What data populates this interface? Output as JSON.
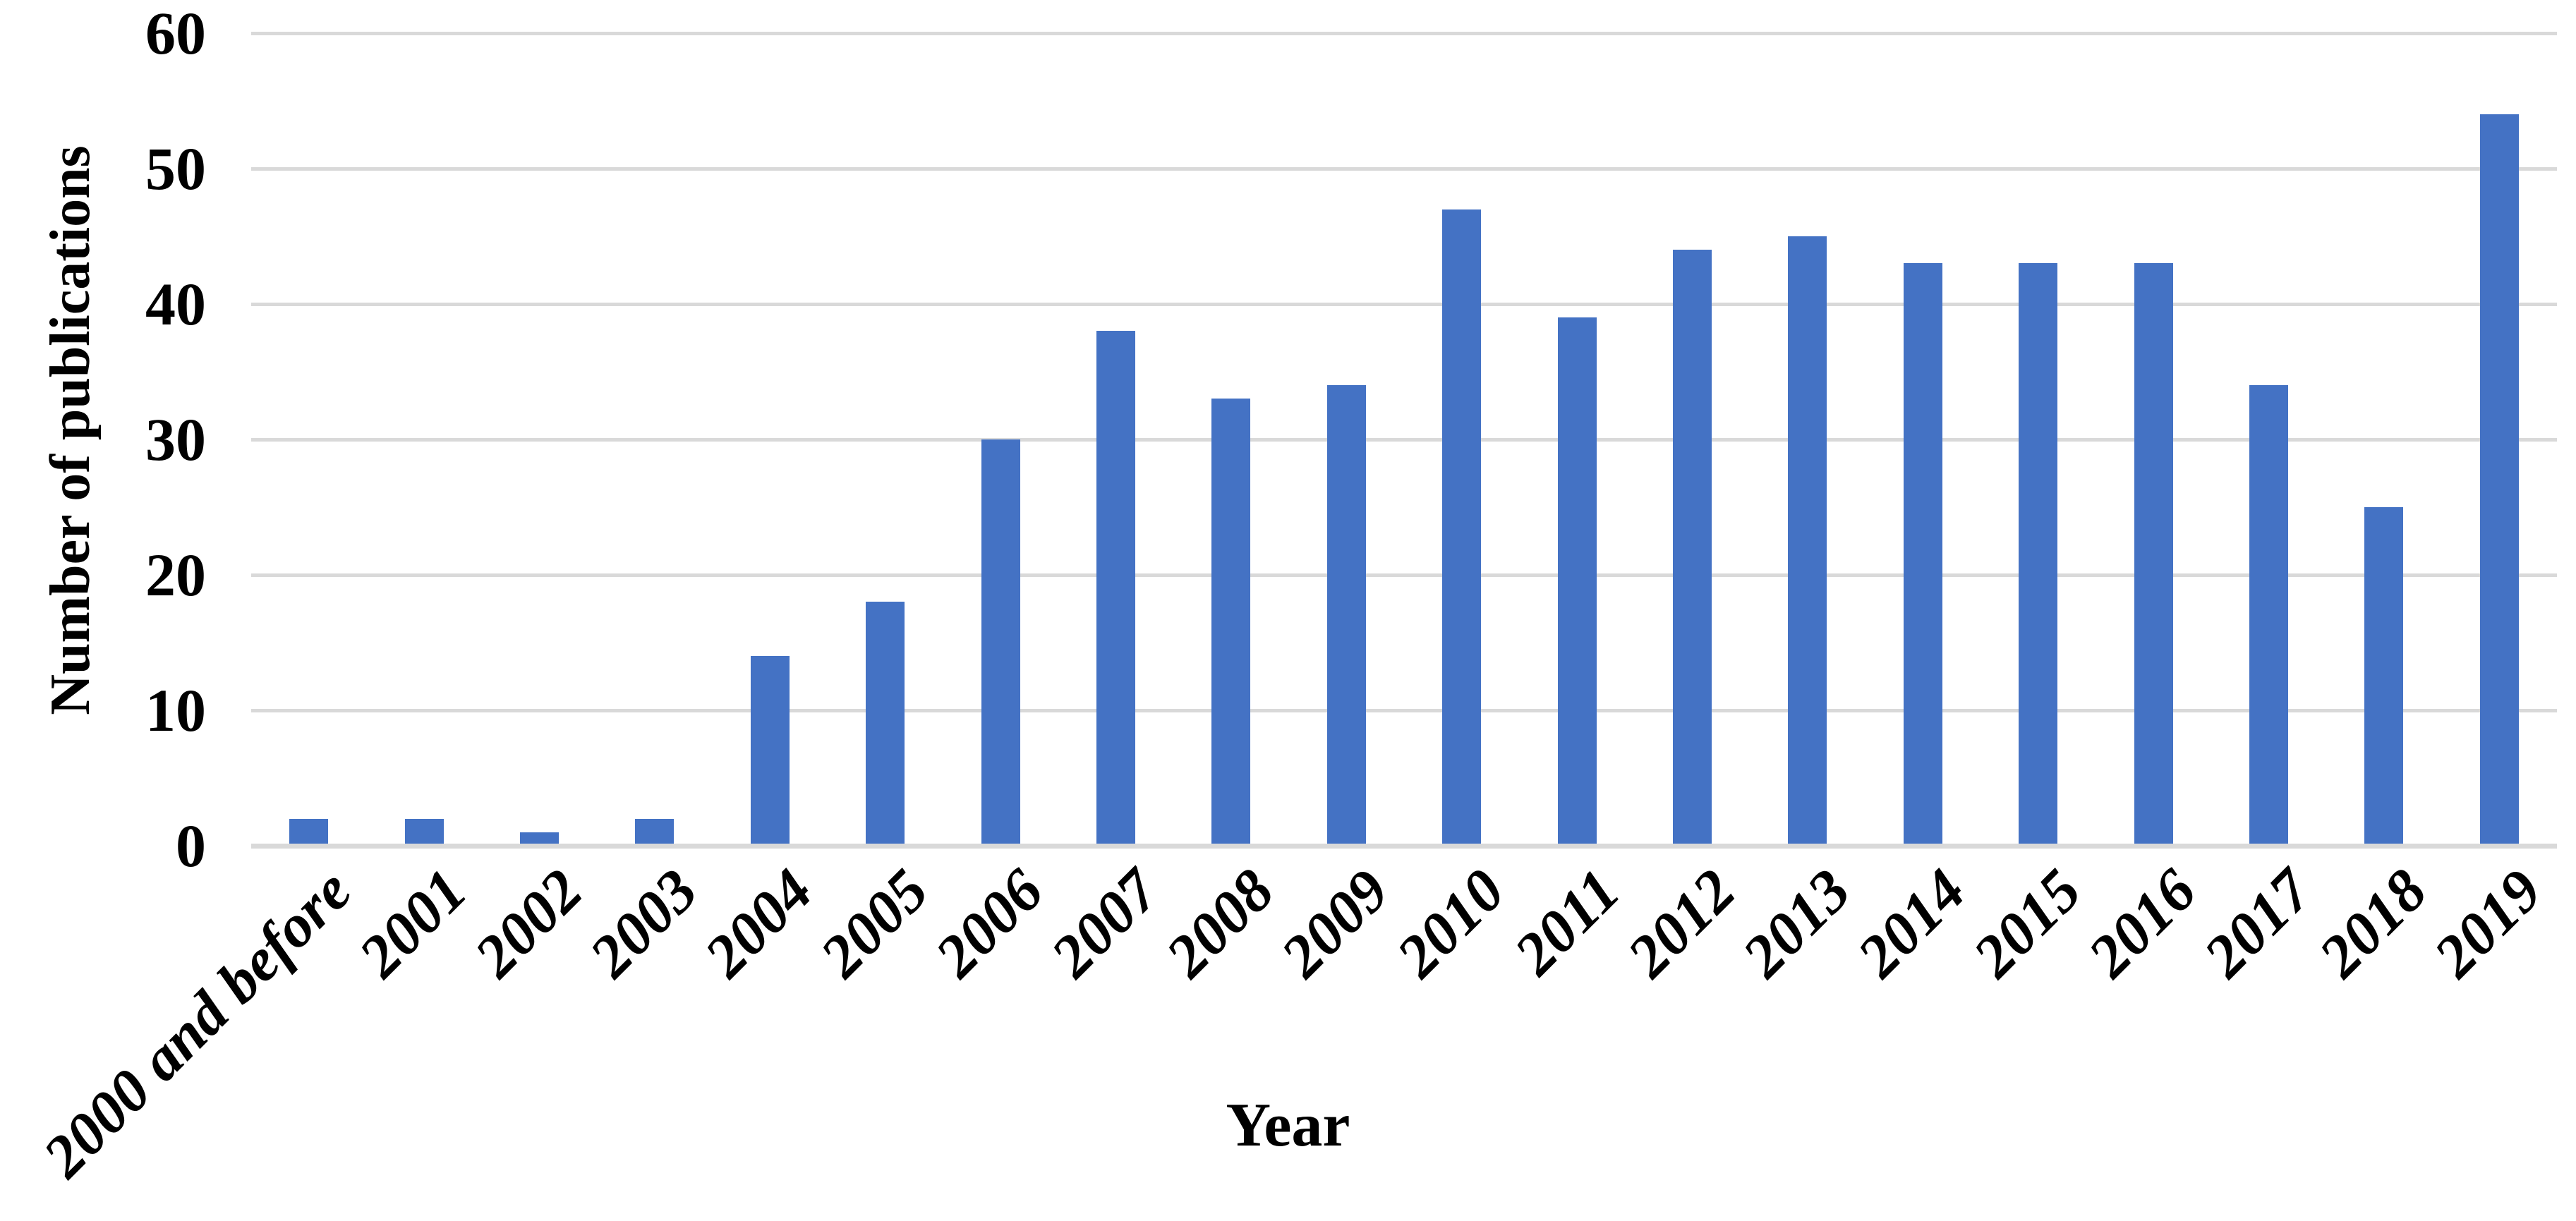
{
  "chart_data": {
    "type": "bar",
    "title": "",
    "xlabel": "Year",
    "ylabel": "Number of publications",
    "categories": [
      "2000 and before",
      "2001",
      "2002",
      "2003",
      "2004",
      "2005",
      "2006",
      "2007",
      "2008",
      "2009",
      "2010",
      "2011",
      "2012",
      "2013",
      "2014",
      "2015",
      "2016",
      "2017",
      "2018",
      "2019"
    ],
    "values": [
      2,
      2,
      1,
      2,
      14,
      18,
      30,
      38,
      33,
      34,
      47,
      39,
      44,
      45,
      43,
      43,
      43,
      34,
      25,
      54
    ],
    "ylim": [
      0,
      60
    ],
    "yticks": [
      0,
      10,
      20,
      30,
      40,
      50,
      60
    ],
    "grid": "horizontal",
    "legend_position": "none",
    "bar_color": "#4472C4",
    "grid_color": "#D9D9D9",
    "axis_line_color": "#D9D9D9",
    "text_color": "#000000"
  }
}
